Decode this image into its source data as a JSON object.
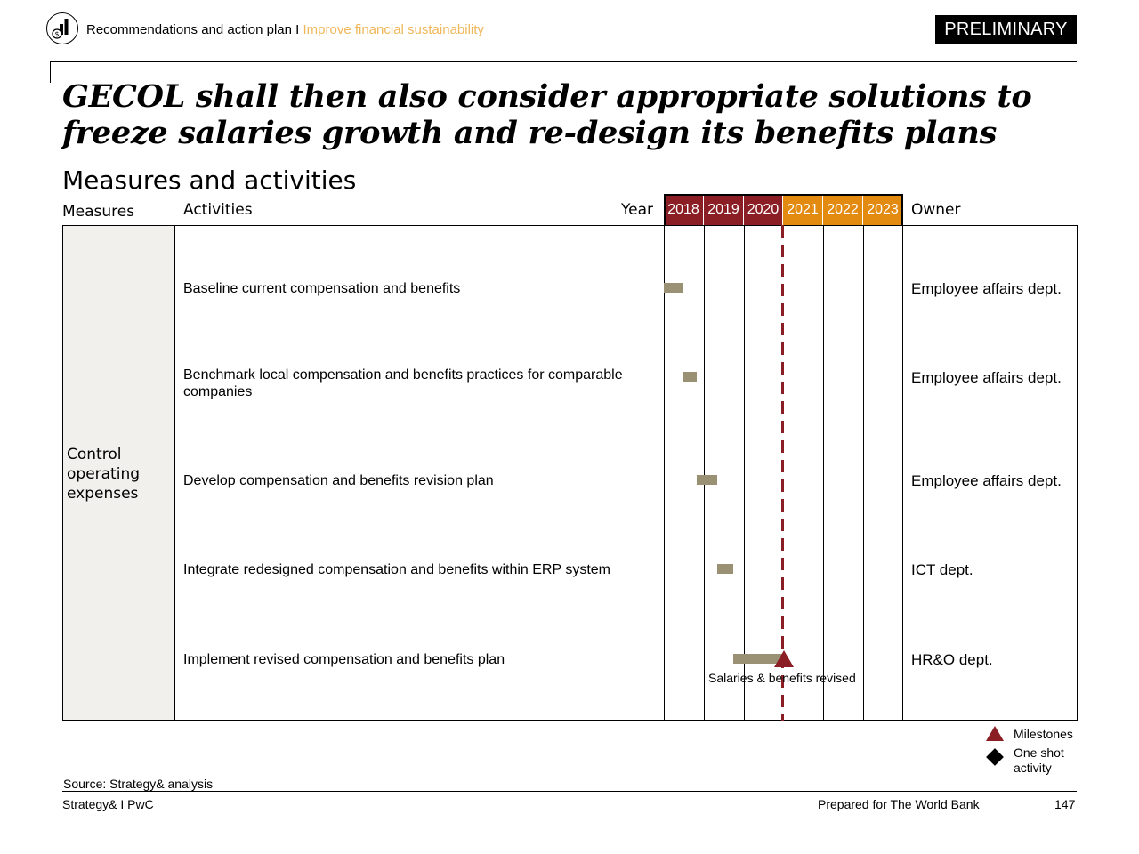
{
  "header": {
    "breadcrumb_main": "Recommendations and action plan I ",
    "breadcrumb_sub": "Improve financial sustainability",
    "status_badge": "PRELIMINARY"
  },
  "title": "GECOL shall then also consider appropriate solutions to freeze salaries growth and re-design its benefits plans",
  "section_title": "Measures and activities",
  "columns": {
    "measures": "Measures",
    "activities": "Activities",
    "year": "Year",
    "owner": "Owner"
  },
  "years": [
    {
      "label": "2018",
      "color": "#8b1d24"
    },
    {
      "label": "2019",
      "color": "#8b1d24"
    },
    {
      "label": "2020",
      "color": "#8b1d24"
    },
    {
      "label": "2021",
      "color": "#e38a10"
    },
    {
      "label": "2022",
      "color": "#e38a10"
    },
    {
      "label": "2023",
      "color": "#e38a10"
    }
  ],
  "measure": "Control operating expenses",
  "rows": [
    {
      "activity": "Baseline current compensation and benefits",
      "owner": "Employee affairs dept.",
      "start": 2018.0,
      "end": 2018.5
    },
    {
      "activity": "Benchmark local compensation and benefits practices for comparable companies",
      "owner": "Employee affairs dept.",
      "start": 2018.5,
      "end": 2018.83
    },
    {
      "activity": "Develop compensation and benefits revision plan",
      "owner": "Employee affairs dept.",
      "start": 2018.83,
      "end": 2019.33
    },
    {
      "activity": "Integrate redesigned compensation and benefits within ERP system",
      "owner": "ICT dept.",
      "start": 2019.33,
      "end": 2019.75
    },
    {
      "activity": "Implement revised compensation and benefits plan",
      "owner": "HR&O dept.",
      "start": 2019.75,
      "end": 2021.0
    }
  ],
  "milestone": {
    "label": "Salaries & benefits revised",
    "year": 2021.0
  },
  "legend": {
    "milestones": "Milestones",
    "one_shot": "One shot activity"
  },
  "colors": {
    "past_year": "#8b1d24",
    "future_year": "#e38a10",
    "bar": "#9a9175",
    "milestone": "#8b1d24"
  },
  "footer": {
    "source": "Source: Strategy& analysis",
    "left": "Strategy& I PwC",
    "center": "Prepared for The World Bank",
    "page": "147"
  }
}
